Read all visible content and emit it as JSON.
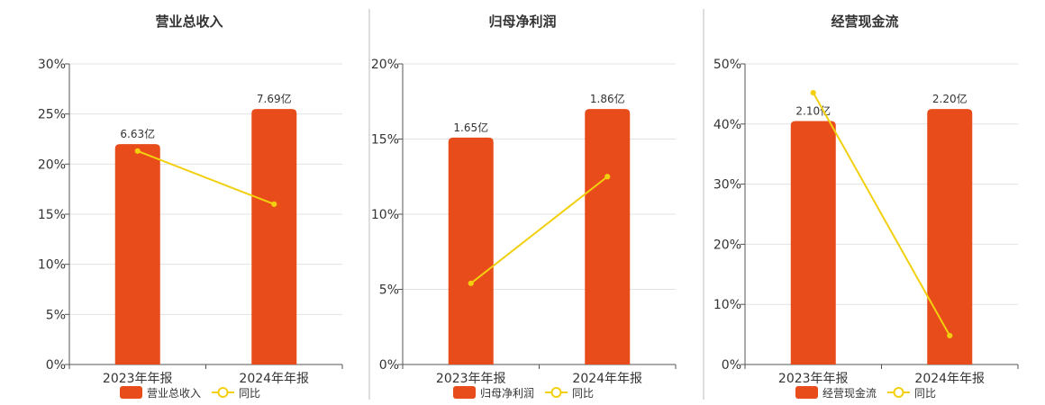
{
  "chart_data": [
    {
      "type": "bar",
      "title": "营业总收入",
      "categories": [
        "2023年年报",
        "2024年年报"
      ],
      "series": [
        {
          "name": "营业总收入",
          "kind": "bar",
          "values": [
            22,
            25.5
          ],
          "labels": [
            "6.63亿",
            "7.69亿"
          ],
          "color": "#e84c1a"
        },
        {
          "name": "同比",
          "kind": "line",
          "values": [
            21.3,
            16.0
          ],
          "color": "#f2d00f"
        }
      ],
      "ylim": [
        0,
        30
      ],
      "yticks": [
        "0%",
        "5%",
        "10%",
        "15%",
        "20%",
        "25%",
        "30%"
      ],
      "grid": true,
      "legend": "bottom"
    },
    {
      "type": "bar",
      "title": "归母净利润",
      "categories": [
        "2023年年报",
        "2024年年报"
      ],
      "series": [
        {
          "name": "归母净利润",
          "kind": "bar",
          "values": [
            15.1,
            17.0
          ],
          "labels": [
            "1.65亿",
            "1.86亿"
          ],
          "color": "#e84c1a"
        },
        {
          "name": "同比",
          "kind": "line",
          "values": [
            5.4,
            12.5
          ],
          "color": "#f2d00f"
        }
      ],
      "ylim": [
        0,
        20
      ],
      "yticks": [
        "0%",
        "5%",
        "10%",
        "15%",
        "20%"
      ],
      "grid": true,
      "legend": "bottom"
    },
    {
      "type": "bar",
      "title": "经营现金流",
      "categories": [
        "2023年年报",
        "2024年年报"
      ],
      "series": [
        {
          "name": "经营现金流",
          "kind": "bar",
          "values": [
            40.5,
            42.5
          ],
          "labels": [
            "2.10亿",
            "2.20亿"
          ],
          "color": "#e84c1a"
        },
        {
          "name": "同比",
          "kind": "line",
          "values": [
            45.2,
            4.8
          ],
          "color": "#f2d00f"
        }
      ],
      "ylim": [
        0,
        50
      ],
      "yticks": [
        "0%",
        "10%",
        "20%",
        "30%",
        "40%",
        "50%"
      ],
      "grid": true,
      "legend": "bottom"
    }
  ]
}
